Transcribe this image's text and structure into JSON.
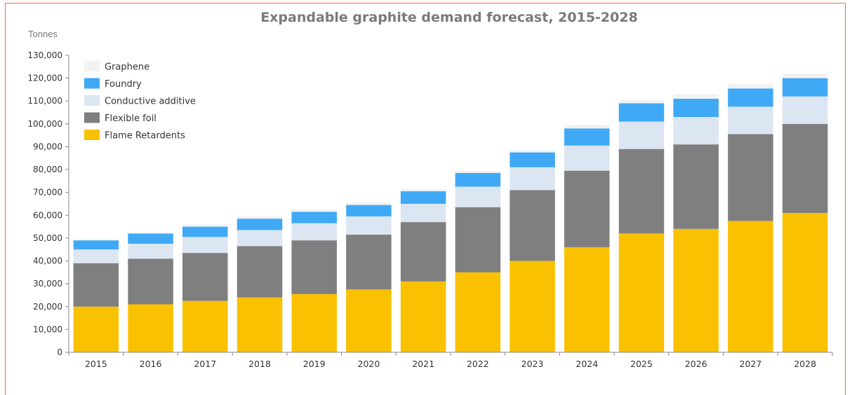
{
  "chart_data": {
    "type": "bar",
    "stacked": true,
    "title": "Expandable graphite demand forecast, 2015-2028",
    "ylabel": "Tonnes",
    "xlabel": "",
    "ylim": [
      0,
      130000
    ],
    "ytick_step": 10000,
    "yticks": [
      "0",
      "10,000",
      "20,000",
      "30,000",
      "40,000",
      "50,000",
      "60,000",
      "70,000",
      "80,000",
      "90,000",
      "100,000",
      "110,000",
      "120,000",
      "130,000"
    ],
    "grid": false,
    "legend_position": "top-left",
    "categories": [
      "2015",
      "2016",
      "2017",
      "2018",
      "2019",
      "2020",
      "2021",
      "2022",
      "2023",
      "2024",
      "2025",
      "2026",
      "2027",
      "2028"
    ],
    "series": [
      {
        "name": "Flame Retardents",
        "color": "#FAC100",
        "values": [
          20000,
          21000,
          22500,
          24000,
          25500,
          27500,
          31000,
          35000,
          40000,
          46000,
          52000,
          54000,
          57500,
          61000
        ]
      },
      {
        "name": "Flexible foil",
        "color": "#7F7F7F",
        "values": [
          19000,
          20000,
          21000,
          22500,
          23500,
          24000,
          26000,
          28500,
          31000,
          33500,
          37000,
          37000,
          38000,
          39000
        ]
      },
      {
        "name": "Conductive additive",
        "color": "#DCE6F2",
        "values": [
          6000,
          6500,
          7000,
          7000,
          7500,
          8000,
          8000,
          9000,
          10000,
          11000,
          12000,
          12000,
          12000,
          12000
        ]
      },
      {
        "name": "Foundry",
        "color": "#3FA9F5",
        "values": [
          4000,
          4500,
          4500,
          5000,
          5000,
          5000,
          5500,
          6000,
          6500,
          7500,
          8000,
          8000,
          8000,
          8000
        ]
      },
      {
        "name": "Graphene",
        "color": "#F2F2F2",
        "values": [
          500,
          500,
          1000,
          1000,
          1000,
          1000,
          1000,
          1000,
          1000,
          1500,
          1500,
          2000,
          2000,
          2000
        ]
      }
    ],
    "legend_order": [
      "Graphene",
      "Foundry",
      "Conductive additive",
      "Flexible foil",
      "Flame Retardents"
    ]
  }
}
